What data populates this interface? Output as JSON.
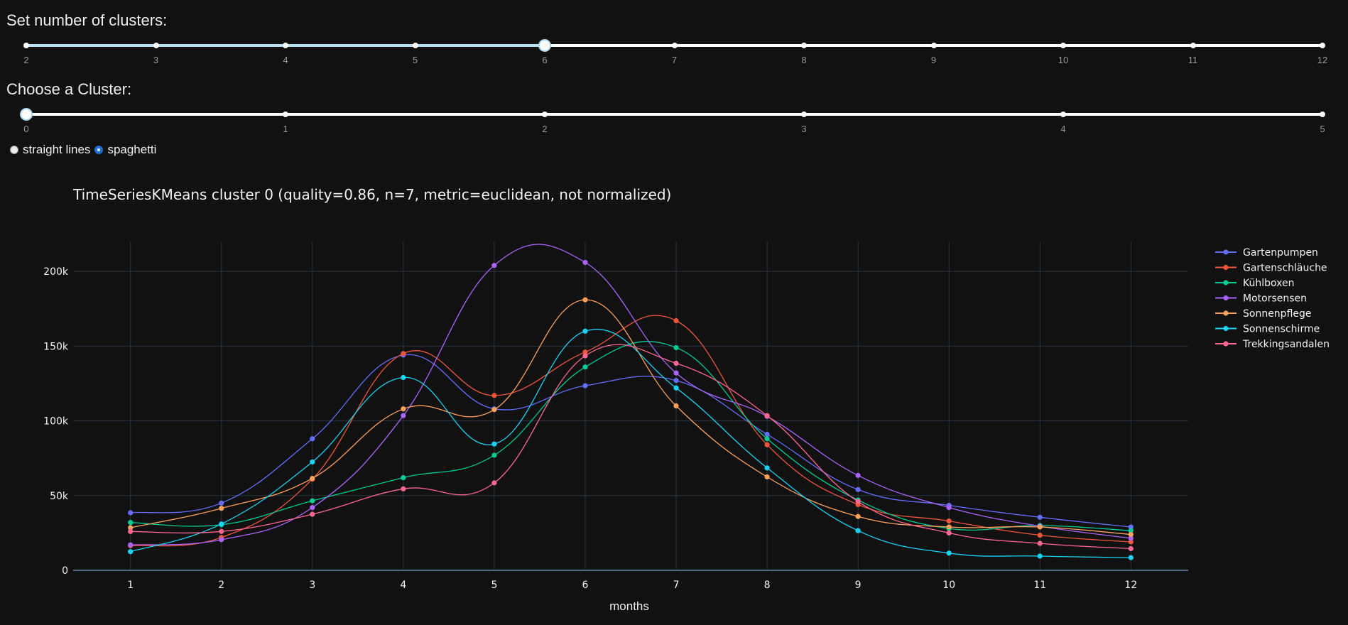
{
  "controls": {
    "n_clusters": {
      "label": "Set number of clusters:",
      "marks": [
        "2",
        "3",
        "4",
        "5",
        "6",
        "7",
        "8",
        "9",
        "10",
        "11",
        "12"
      ],
      "value": 6,
      "min": 2,
      "max": 12
    },
    "cluster": {
      "label": "Choose a Cluster:",
      "marks": [
        "0",
        "1",
        "2",
        "3",
        "4",
        "5"
      ],
      "value": 0,
      "min": 0,
      "max": 5
    },
    "mode": {
      "options": [
        "straight lines",
        "spaghetti"
      ],
      "selected": "spaghetti"
    }
  },
  "chart_data": {
    "type": "line",
    "title": "TimeSeriesKMeans cluster 0 (quality=0.86, n=7, metric=euclidean, not normalized)",
    "xlabel": "months",
    "ylabel": "",
    "x": [
      1,
      2,
      3,
      4,
      5,
      6,
      7,
      8,
      9,
      10,
      11,
      12
    ],
    "ylim": [
      0,
      220000
    ],
    "yticks": [
      0,
      50000,
      100000,
      150000,
      200000
    ],
    "ytick_labels": [
      "0",
      "50k",
      "100k",
      "150k",
      "200k"
    ],
    "grid": true,
    "legend_position": "top-right",
    "series": [
      {
        "name": "Gartenpumpen",
        "color": "#636efa",
        "values": [
          38500,
          45000,
          88000,
          144000,
          108000,
          123500,
          127000,
          91000,
          54000,
          43500,
          35500,
          29000
        ]
      },
      {
        "name": "Gartenschläuche",
        "color": "#ef553b",
        "values": [
          16500,
          22000,
          61000,
          145000,
          117000,
          146000,
          167000,
          84000,
          44000,
          33000,
          23500,
          19000
        ]
      },
      {
        "name": "Kühlboxen",
        "color": "#00cc96",
        "values": [
          32000,
          30500,
          46500,
          62000,
          77000,
          136000,
          149000,
          88000,
          47000,
          28000,
          30000,
          26500
        ]
      },
      {
        "name": "Motorsensen",
        "color": "#ab63fa",
        "values": [
          17000,
          20500,
          42000,
          103500,
          204000,
          206000,
          132000,
          103000,
          63500,
          42000,
          29500,
          21500
        ]
      },
      {
        "name": "Sonnenpflege",
        "color": "#ffa15a",
        "values": [
          28500,
          41500,
          61500,
          108000,
          107500,
          181000,
          110000,
          62500,
          36000,
          29000,
          29000,
          24000
        ]
      },
      {
        "name": "Sonnenschirme",
        "color": "#19d3f3",
        "values": [
          12500,
          31000,
          72500,
          129000,
          84500,
          160000,
          122000,
          68500,
          26500,
          11500,
          9500,
          8500
        ]
      },
      {
        "name": "Trekkingsandalen",
        "color": "#ff6692",
        "values": [
          26000,
          26000,
          37500,
          54500,
          58500,
          143500,
          138500,
          103500,
          46000,
          25000,
          18000,
          14500
        ]
      }
    ]
  }
}
